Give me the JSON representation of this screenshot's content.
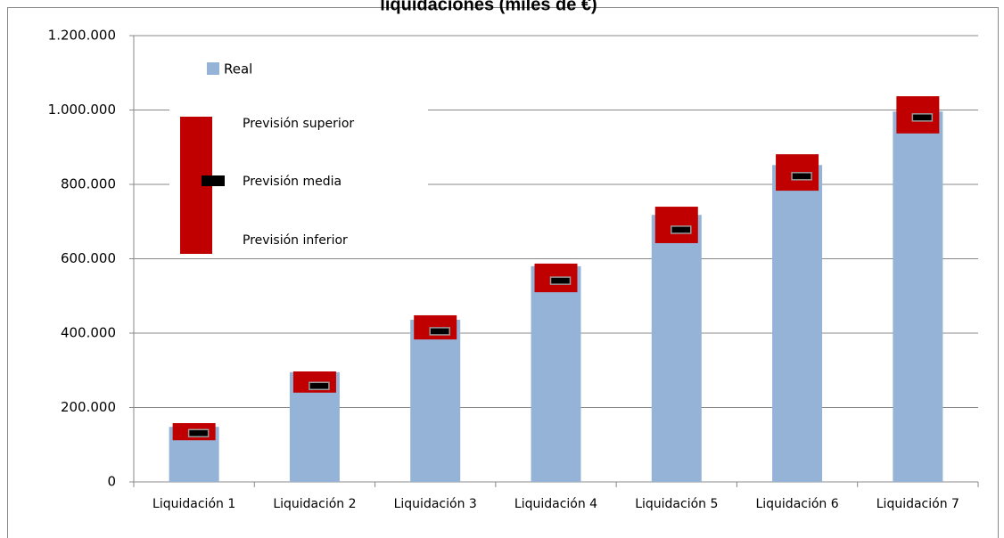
{
  "chart_data": {
    "type": "bar",
    "title": "liquidaciones (miles de €)",
    "categories": [
      "Liquidación 1",
      "Liquidación 2",
      "Liquidación 3",
      "Liquidación 4",
      "Liquidación 5",
      "Liquidación 6",
      "Liquidación 7"
    ],
    "series": [
      {
        "name": "Real",
        "color": "#95b3d7",
        "values": [
          148000,
          295000,
          436000,
          580000,
          718000,
          852000,
          996000
        ]
      },
      {
        "name": "Previsión superior",
        "color": "#c00000",
        "values": [
          158000,
          297000,
          448000,
          587000,
          740000,
          881000,
          1037000
        ]
      },
      {
        "name": "Previsión media",
        "color": "#000000",
        "values": [
          131000,
          258000,
          405000,
          541000,
          678000,
          822000,
          980000
        ]
      },
      {
        "name": "Previsión inferior",
        "color": "#c00000",
        "values": [
          112000,
          240000,
          383000,
          510000,
          642000,
          783000,
          937000
        ]
      }
    ],
    "ylim": [
      0,
      1200000
    ],
    "yticks": [
      0,
      {
        "value": 200000,
        "label": "200.000"
      },
      {
        "value": 400000,
        "label": "400.000"
      },
      {
        "value": 600000,
        "label": "600.000"
      },
      {
        "value": 800000,
        "label": "800.000"
      },
      {
        "value": 1000000,
        "label": "1.000.000"
      },
      {
        "value": 1200000,
        "label": "1.200.000"
      }
    ],
    "grid": true
  }
}
